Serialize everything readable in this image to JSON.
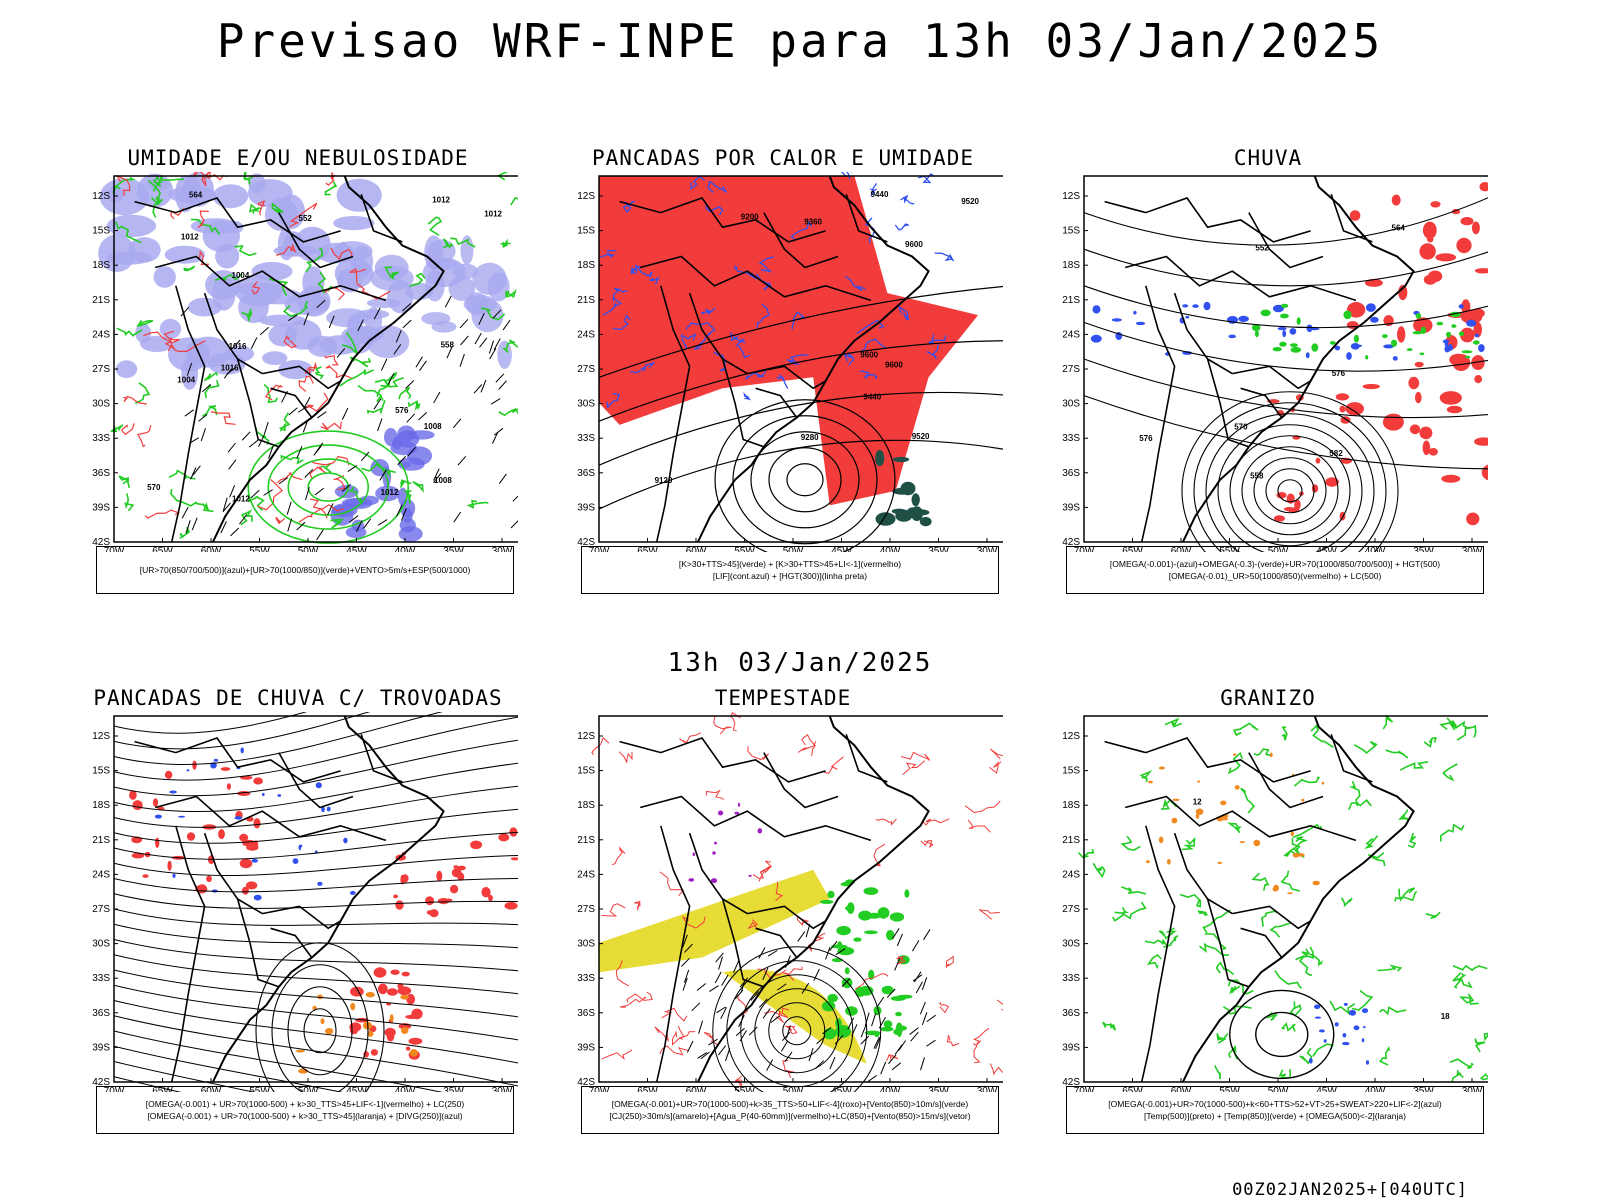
{
  "title": "Previsao WRF-INPE  para 13h 03/Jan/2025",
  "mid_date": "13h 03/Jan/2025",
  "footer": "00Z02JAN2025+[040UTC]",
  "lat_labels": [
    "12S",
    "15S",
    "18S",
    "21S",
    "24S",
    "27S",
    "30S",
    "33S",
    "36S",
    "39S",
    "42S"
  ],
  "lon_labels": [
    "70W",
    "65W",
    "60W",
    "55W",
    "50W",
    "45W",
    "40W",
    "35W",
    "30W"
  ],
  "colors": {
    "blue_shade": "#a9a9f0",
    "green": "#22cc22",
    "red": "#f23c3c",
    "blue": "#3050f0",
    "orange": "#f08a20",
    "yellow": "#e4d820",
    "purple": "#a020c0",
    "dark_green": "#1e5046"
  },
  "panels": [
    {
      "title": "UMIDADE E/OU NEBULOSIDADE",
      "legend": [
        "[UR>70(850/700/500)](azul)+[UR>70(1000/850)](verde)+VENTO>5m/s+ESP(500/1000)"
      ],
      "contour_labels": [
        "1012",
        "1012",
        "1008",
        "1012",
        "1016",
        "1012",
        "1008",
        "1004",
        "1004",
        "570",
        "576",
        "564",
        "558",
        "552",
        "1016",
        "1012"
      ]
    },
    {
      "title": "PANCADAS POR CALOR E UMIDADE",
      "legend": [
        "[K>30+TTS>45](verde) + [K>30+TTS>45+LI<-1](vermelho)",
        "[LIF](cont.azul) + [HGT(300)](linha preta)"
      ],
      "contour_labels": [
        "9600",
        "9600",
        "9600",
        "9520",
        "9520",
        "9440",
        "9360",
        "9280",
        "9200",
        "9120",
        "9440"
      ]
    },
    {
      "title": "CHUVA",
      "legend": [
        "[OMEGA(-0.001)-(azul)+OMEGA(-0.3)-(verde)+UR>70(1000/850/700/500)] + HGT(500)",
        "[OMEGA(-0.01)_UR>50(1000/850)(vermelho) + LC(500)"
      ],
      "contour_labels": [
        "582",
        "576",
        "570",
        "564",
        "558",
        "552",
        "576"
      ]
    },
    {
      "title": "PANCADAS DE CHUVA C/ TROVOADAS",
      "legend": [
        "[OMEGA(-0.001) + UR>70(1000-500) + k>30_TTS>45+LIF<-1](vermelho) + LC(250)",
        "[OMEGA(-0.001) + UR>70(1000-500) + k>30_TTS>45](laranja) + [DIVG(250)](azul)"
      ],
      "contour_labels": []
    },
    {
      "title": "TEMPESTADE",
      "legend": [
        "[OMEGA(-0.001)+UR>70(1000-500)+k>35_TTS>50+LIF<-4](roxo)+[Vento(850)>10m/s](verde)",
        "[CJ(250)>30m/s](amarelo)+[Agua_P(40-60mm)](vermelho)+LC(850)+[Vento(850)>15m/s](vetor)"
      ],
      "contour_labels": []
    },
    {
      "title": "GRANIZO",
      "legend": [
        "[OMEGA(-0.001)+UR>70(1000-500)+k<60+TTS>52+VT>25+SWEAT>220+LIF<-2](azul)",
        "[Temp(500)](preto) + [Temp(850)](verde) + [OMEGA(500)<-2](laranja)"
      ],
      "contour_labels": [
        "18",
        "12"
      ]
    }
  ]
}
